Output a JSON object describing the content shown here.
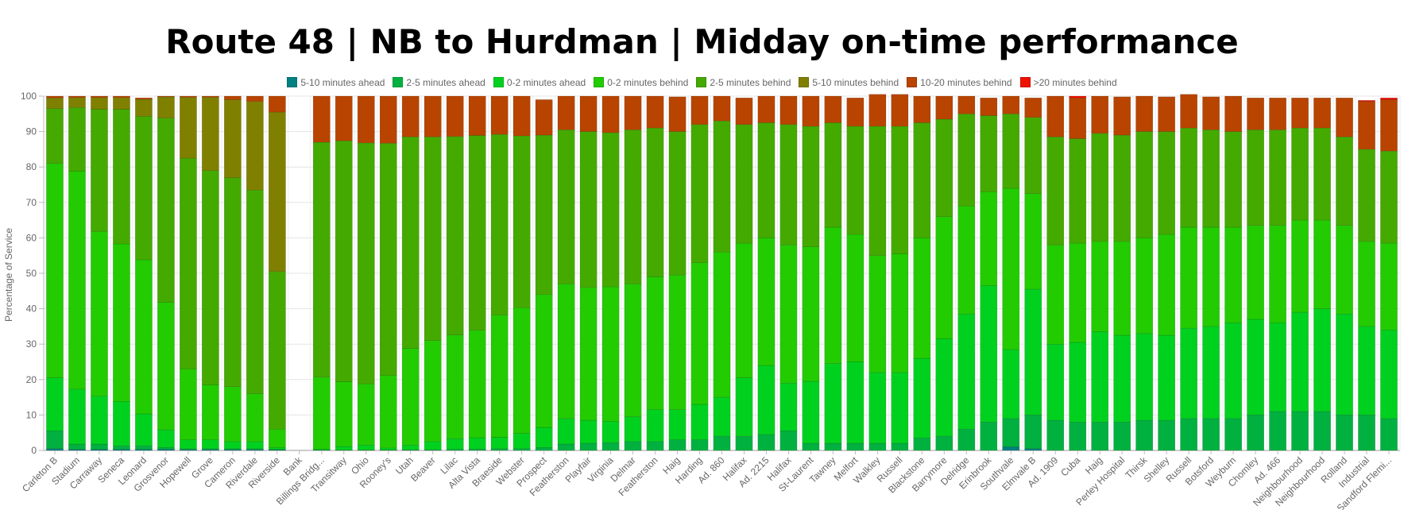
{
  "title": "Route 48 | NB to Hurdman | Midday on-time performance",
  "chart_data": {
    "type": "bar",
    "stacked": true,
    "ylabel": "Percentage of Service",
    "xlabel": "",
    "ylim": [
      0,
      100
    ],
    "yticks": [
      0,
      10,
      20,
      30,
      40,
      50,
      60,
      70,
      80,
      90,
      100
    ],
    "grid": true,
    "legend_position": "top",
    "categories": [
      "Carleton B",
      "Stadium",
      "Carraway",
      "Seneca",
      "Leonard",
      "Grosvenor",
      "Hopewell",
      "Grove",
      "Cameron",
      "Riverdale",
      "Riverside",
      "Bank",
      "Billings Bridg...",
      "Transitway",
      "Ohio",
      "Rooney's",
      "Utah",
      "Beaver",
      "Lilac",
      "Alta Vista",
      "Braeside",
      "Webster",
      "Prospect",
      "Featherston",
      "Playfair",
      "Virginia",
      "Delmar",
      "Featherston",
      "Haig",
      "Harding",
      "Ad. 860",
      "Halifax",
      "Ad. 2215",
      "Halifax",
      "St-Laurent",
      "Tawney",
      "Melfort",
      "Walkley",
      "Russell",
      "Blackstone",
      "Barrymore",
      "Delridge",
      "Erinbrook",
      "Southvale",
      "Elmvale B",
      "Ad. 1909",
      "Cuba",
      "Haig",
      "Perley Hospital",
      "Thirsk",
      "Shelley",
      "Russell",
      "Botsford",
      "Weyburn",
      "Chomley",
      "Ad. 466",
      "Neighbourhood",
      "Neighbourhood",
      "Rolland",
      "Industrial",
      "Sandford Flemi..."
    ],
    "series": [
      {
        "name": "5-10 minutes ahead",
        "color": "#008080",
        "values": [
          0.5,
          0.3,
          0.3,
          0.3,
          0.3,
          0.3,
          0.2,
          0.2,
          0.2,
          0.2,
          0.1,
          0,
          0,
          0,
          0,
          0,
          0,
          0,
          0,
          0,
          0,
          0,
          0,
          0,
          0,
          0,
          0,
          0,
          0,
          0,
          0,
          0,
          0,
          0,
          0,
          0,
          0,
          0,
          0,
          0,
          0,
          0,
          0,
          1,
          0.5,
          0,
          0,
          0,
          0,
          0,
          0,
          0,
          0,
          0,
          0,
          0,
          0,
          0,
          0,
          0,
          0
        ]
      },
      {
        "name": "2-5 minutes ahead",
        "color": "#00b140",
        "values": [
          5,
          1.5,
          1.5,
          1,
          1,
          0.5,
          0.3,
          0.3,
          0.3,
          0.3,
          0.2,
          0,
          0.1,
          0.1,
          0.1,
          0.1,
          0.2,
          0.2,
          0.3,
          0.4,
          0.5,
          0.5,
          0.8,
          1.8,
          2,
          2.2,
          2.5,
          2.5,
          3,
          3,
          4,
          4,
          4.5,
          5.5,
          2,
          2,
          2,
          2,
          2,
          3.5,
          4,
          6,
          8,
          8,
          9.5,
          8.5,
          8,
          8,
          8,
          8.5,
          8.5,
          9,
          9,
          9,
          10,
          11,
          11,
          11,
          10,
          10,
          9
        ]
      },
      {
        "name": "0-2 minutes ahead",
        "color": "#00d11f",
        "values": [
          15,
          15.5,
          13.5,
          12.5,
          9,
          5,
          2.5,
          2.5,
          2,
          2,
          0.5,
          0,
          0.3,
          1,
          1.4,
          0.6,
          1.3,
          2.3,
          3,
          3.2,
          3.2,
          4.3,
          5.7,
          7.2,
          6.5,
          6,
          7,
          9,
          8.5,
          10,
          11,
          16.5,
          19.5,
          13.5,
          17.5,
          22.5,
          23,
          20,
          20,
          22.5,
          27.5,
          32.5,
          38.5,
          19.5,
          35.5,
          21.5,
          22.5,
          25.5,
          24.5,
          24.5,
          24,
          25.5,
          26,
          27,
          27,
          25,
          28,
          29,
          28.5,
          25,
          25
        ]
      },
      {
        "name": "0-2 minutes behind",
        "color": "#22cc00",
        "values": [
          60.5,
          61.5,
          46.5,
          44.5,
          43.5,
          36,
          20,
          15.5,
          15.5,
          13.5,
          5.2,
          0,
          20.3,
          18.3,
          17.3,
          20.5,
          27.3,
          28.5,
          29.3,
          30.3,
          34.5,
          35.5,
          37.5,
          38,
          37.5,
          38,
          37.5,
          37.5,
          38,
          40,
          41,
          38,
          36,
          39,
          38,
          38.5,
          36,
          33,
          33.5,
          34,
          34.5,
          30.5,
          26.5,
          45.5,
          27,
          28,
          28,
          25.5,
          26.5,
          27,
          28.5,
          28.5,
          28,
          27,
          26.5,
          27.5,
          26,
          25,
          25,
          24,
          24.5
        ]
      },
      {
        "name": "2-5 minutes behind",
        "color": "#44aa00",
        "values": [
          15.5,
          18,
          34.5,
          38,
          40.5,
          52,
          59.5,
          60.5,
          59,
          57.5,
          44.5,
          0,
          66.3,
          68,
          68,
          65.5,
          59.7,
          57.5,
          56,
          55,
          51,
          48.5,
          45,
          43.5,
          44,
          43.5,
          43.5,
          42,
          40.5,
          39,
          37,
          33.5,
          32.5,
          34,
          34,
          29.5,
          30.5,
          36.5,
          36,
          32.5,
          27.5,
          26,
          21.5,
          21,
          21.5,
          30.5,
          29.5,
          30.5,
          30,
          30,
          29,
          28,
          27.5,
          27,
          27,
          27,
          26,
          26,
          25,
          26,
          26
        ]
      },
      {
        "name": "5-10 minutes behind",
        "color": "#808000",
        "values": [
          3,
          2.8,
          3.3,
          3.3,
          4.8,
          6,
          17.2,
          20.7,
          22,
          25,
          45,
          0,
          0,
          0,
          0,
          0,
          0,
          0,
          0,
          0,
          0,
          0,
          0,
          0,
          0,
          0,
          0,
          0,
          0,
          0,
          0,
          0,
          0,
          0,
          0,
          0,
          0,
          0,
          0,
          0,
          0,
          0,
          0,
          0,
          0,
          0,
          0,
          0,
          0,
          0,
          0,
          0,
          0,
          0,
          0,
          0,
          0,
          0,
          0,
          0,
          0
        ]
      },
      {
        "name": "10-20 minutes behind",
        "color": "#b84400",
        "values": [
          0.5,
          0.4,
          0.4,
          0.4,
          0.4,
          0.2,
          0.3,
          0.3,
          1,
          1.5,
          4.5,
          0,
          13,
          12.6,
          13.2,
          13.3,
          11.5,
          11.5,
          11.4,
          11.1,
          10.8,
          11.2,
          10,
          9.5,
          10,
          10.3,
          9.5,
          9,
          9.8,
          8,
          7,
          7.5,
          7.5,
          8,
          8.5,
          7.5,
          8,
          9,
          9,
          7.5,
          6.5,
          5,
          5,
          5,
          5.5,
          11.5,
          11.5,
          10.5,
          10.8,
          10,
          9.8,
          9.5,
          9.3,
          10,
          9,
          9,
          8.5,
          8.5,
          11,
          13.5,
          14.5
        ]
      },
      {
        "name": ">20 minutes behind",
        "color": "#ee1100",
        "values": [
          0,
          0,
          0,
          0,
          0,
          0,
          0,
          0,
          0,
          0,
          0,
          0,
          0,
          0,
          0,
          0,
          0,
          0,
          0,
          0,
          0,
          0,
          0,
          0,
          0,
          0,
          0,
          0,
          0,
          0,
          0,
          0,
          0,
          0,
          0,
          0,
          0,
          0,
          0,
          0,
          0,
          0,
          0,
          0,
          0,
          0,
          0.5,
          0,
          0,
          0,
          0,
          0,
          0,
          0,
          0,
          0,
          0,
          0,
          0,
          0.3,
          0.5
        ]
      }
    ]
  }
}
